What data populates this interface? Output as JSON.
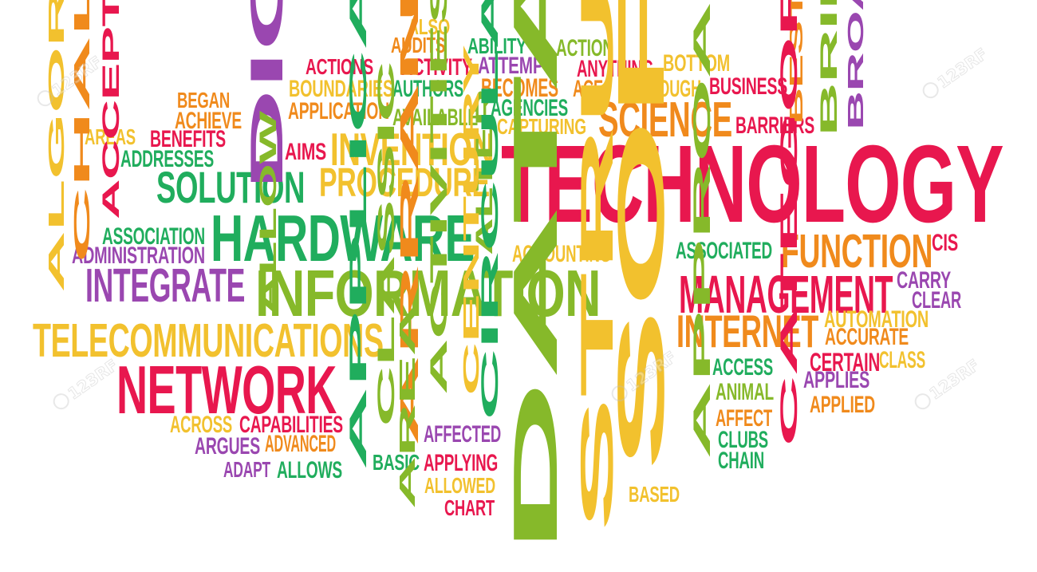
{
  "colors": {
    "red": "#e8174e",
    "orange": "#f08a1c",
    "yellow": "#f2c12e",
    "green": "#20ad5d",
    "lime": "#86b92a",
    "purple": "#9a47b0"
  },
  "watermark": {
    "text": "123RF"
  },
  "words": [
    {
      "text": "TECHNOLOGY",
      "color": "red"
    },
    {
      "text": "ALSO",
      "color": "yellow"
    },
    {
      "text": "AUDITS",
      "color": "orange"
    },
    {
      "text": "ABILITY",
      "color": "green"
    },
    {
      "text": "ACTION",
      "color": "lime"
    },
    {
      "text": "ACTIONS",
      "color": "red"
    },
    {
      "text": "ACTIVITY",
      "color": "red"
    },
    {
      "text": "ATTEMPT",
      "color": "purple"
    },
    {
      "text": "ANYTHING",
      "color": "red"
    },
    {
      "text": "BOTTOM",
      "color": "yellow"
    },
    {
      "text": "BOUNDARIES",
      "color": "yellow"
    },
    {
      "text": "AUTHORS",
      "color": "green"
    },
    {
      "text": "BECOMES",
      "color": "orange"
    },
    {
      "text": "ACE",
      "color": "orange"
    },
    {
      "text": "ALTHOUGH",
      "color": "yellow"
    },
    {
      "text": "BUSINESS",
      "color": "red"
    },
    {
      "text": "BEGAN",
      "color": "orange"
    },
    {
      "text": "APPLICATION",
      "color": "orange"
    },
    {
      "text": "AGENCIES",
      "color": "green"
    },
    {
      "text": "ACHIEVE",
      "color": "orange"
    },
    {
      "text": "AVAILABLE",
      "color": "lime"
    },
    {
      "text": "CAPTURING",
      "color": "yellow"
    },
    {
      "text": "SCIENCE",
      "color": "orange"
    },
    {
      "text": "BARRIERS",
      "color": "red"
    },
    {
      "text": "AREAS",
      "color": "yellow"
    },
    {
      "text": "BENEFITS",
      "color": "red"
    },
    {
      "text": "ADDRESSES",
      "color": "green"
    },
    {
      "text": "AIMS",
      "color": "red"
    },
    {
      "text": "INVENTION",
      "color": "yellow"
    },
    {
      "text": "PROCEDURE",
      "color": "yellow"
    },
    {
      "text": "SOLUTION",
      "color": "green"
    },
    {
      "text": "HARDWARE",
      "color": "green"
    },
    {
      "text": "ASSOCIATION",
      "color": "green"
    },
    {
      "text": "ADMINISTRATION",
      "color": "purple"
    },
    {
      "text": "ACCOUNTING",
      "color": "yellow"
    },
    {
      "text": "ASSOCIATED",
      "color": "green"
    },
    {
      "text": "FUNCTION",
      "color": "orange"
    },
    {
      "text": "CIS",
      "color": "red"
    },
    {
      "text": "INTEGRATE",
      "color": "purple"
    },
    {
      "text": "INFORMATION",
      "color": "lime"
    },
    {
      "text": "MANAGEMENT",
      "color": "red"
    },
    {
      "text": "CARRY",
      "color": "purple"
    },
    {
      "text": "CLEAR",
      "color": "purple"
    },
    {
      "text": "AUTOMATION",
      "color": "yellow"
    },
    {
      "text": "INTERNET",
      "color": "orange"
    },
    {
      "text": "ACCURATE",
      "color": "orange"
    },
    {
      "text": "TELECOMMUNICATIONS",
      "color": "yellow"
    },
    {
      "text": "NETWORK",
      "color": "red"
    },
    {
      "text": "ACCESS",
      "color": "green"
    },
    {
      "text": "CERTAIN",
      "color": "red"
    },
    {
      "text": "CLASS",
      "color": "yellow"
    },
    {
      "text": "ANIMAL",
      "color": "lime"
    },
    {
      "text": "APPLIES",
      "color": "purple"
    },
    {
      "text": "APPLIED",
      "color": "orange"
    },
    {
      "text": "AFFECT",
      "color": "orange"
    },
    {
      "text": "CLUBS",
      "color": "green"
    },
    {
      "text": "CHAIN",
      "color": "green"
    },
    {
      "text": "ACROSS",
      "color": "yellow"
    },
    {
      "text": "CAPABILITIES",
      "color": "red"
    },
    {
      "text": "ARGUES",
      "color": "purple"
    },
    {
      "text": "ADVANCED",
      "color": "orange"
    },
    {
      "text": "AFFECTED",
      "color": "purple"
    },
    {
      "text": "ADAPT",
      "color": "purple"
    },
    {
      "text": "ALLOWS",
      "color": "green"
    },
    {
      "text": "BASIC",
      "color": "green"
    },
    {
      "text": "APPLYING",
      "color": "red"
    },
    {
      "text": "ALLOWED",
      "color": "yellow"
    },
    {
      "text": "CHART",
      "color": "red"
    },
    {
      "text": "BASED",
      "color": "yellow"
    },
    {
      "text": "DIGITAL",
      "color": "purple"
    },
    {
      "text": "CHALLENGE",
      "color": "orange"
    },
    {
      "text": "ACCEPT",
      "color": "red"
    },
    {
      "text": "ALGORITHMIC",
      "color": "yellow"
    },
    {
      "text": "ALTER",
      "color": "lime"
    },
    {
      "text": "ALLOW",
      "color": "lime"
    },
    {
      "text": "BEST",
      "color": "orange"
    },
    {
      "text": "BRIDGES",
      "color": "lime"
    },
    {
      "text": "BROAD",
      "color": "purple"
    },
    {
      "text": "SOFTWARE",
      "color": "yellow"
    },
    {
      "text": "STRUCTURED",
      "color": "yellow"
    },
    {
      "text": "DATABASE",
      "color": "lime"
    },
    {
      "text": "APPLICATIONS",
      "color": "green"
    },
    {
      "text": "CLASSIC",
      "color": "lime"
    },
    {
      "text": "ARRANGEMENTS",
      "color": "orange"
    },
    {
      "text": "ACTIVITIES",
      "color": "lime"
    },
    {
      "text": "CENTURY",
      "color": "yellow"
    },
    {
      "text": "CIRCULATION",
      "color": "green"
    },
    {
      "text": "AREA",
      "color": "lime"
    },
    {
      "text": "APPROACHES",
      "color": "lime"
    },
    {
      "text": "CATEGORIES",
      "color": "red"
    }
  ]
}
